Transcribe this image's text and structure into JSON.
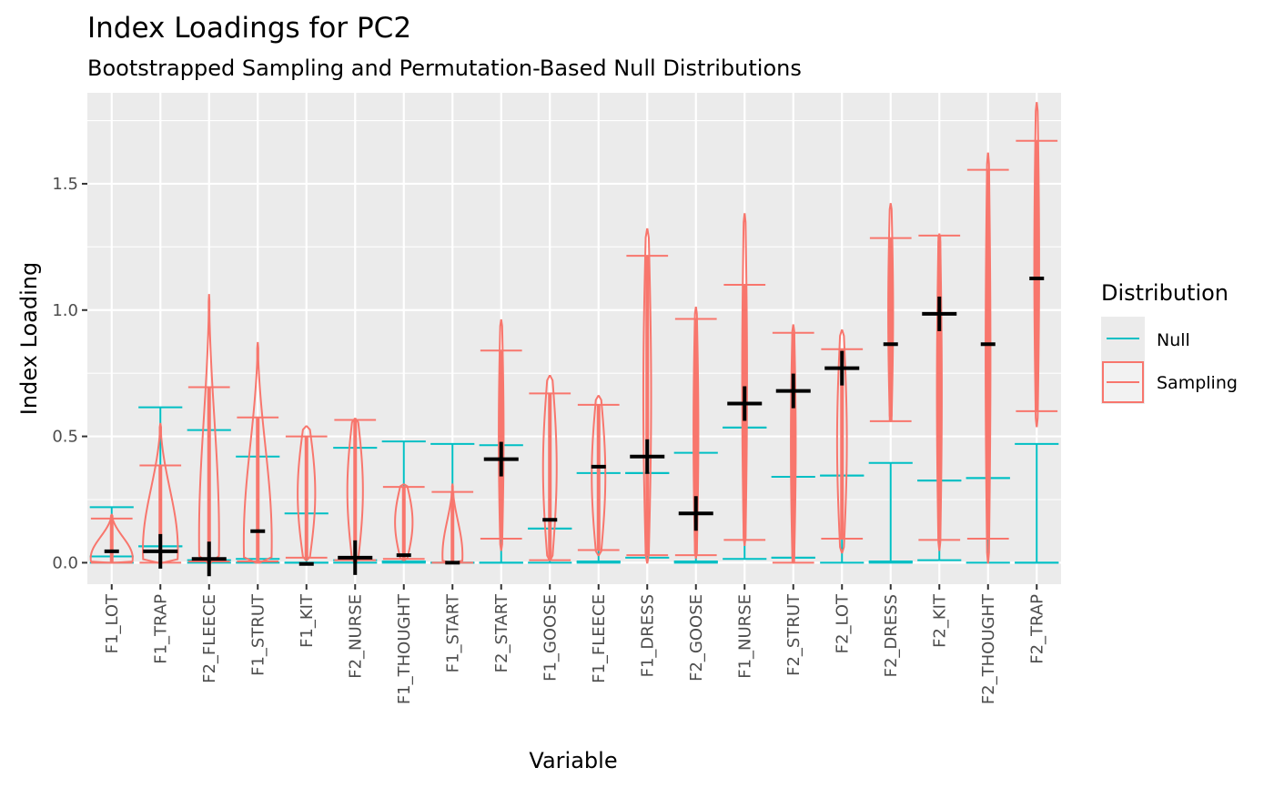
{
  "chart_data": {
    "type": "violin",
    "title": "Index Loadings for PC2",
    "subtitle": "Bootstrapped Sampling and Permutation-Based Null Distributions",
    "xlabel": "Variable",
    "ylabel": "Index Loading",
    "ylim": [
      -0.085,
      1.86
    ],
    "yticks": [
      0.0,
      0.5,
      1.0,
      1.5
    ],
    "ytick_labels": [
      "0.0",
      "0.5",
      "1.0",
      "1.5"
    ],
    "grid": true,
    "legend": {
      "title": "Distribution",
      "placement": "right",
      "entries": [
        {
          "label": "Null",
          "color": "#00BFC4"
        },
        {
          "label": "Sampling",
          "color": "#F8766D"
        }
      ]
    },
    "categories": [
      "F1_LOT",
      "F1_TRAP",
      "F2_FLEECE",
      "F1_STRUT",
      "F1_KIT",
      "F2_NURSE",
      "F1_THOUGHT",
      "F1_START",
      "F2_START",
      "F1_GOOSE",
      "F1_FLEECE",
      "F1_DRESS",
      "F2_GOOSE",
      "F1_NURSE",
      "F2_STRUT",
      "F2_LOT",
      "F2_DRESS",
      "F2_KIT",
      "F2_THOUGHT",
      "F2_TRAP"
    ],
    "null_interval": {
      "low": [
        0.0,
        0.065,
        0.0,
        0.0,
        0.0,
        0.0,
        0.0,
        0.0,
        0.0,
        0.0,
        0.0,
        0.02,
        0.0,
        0.015,
        0.02,
        0.0,
        0.0,
        0.01,
        0.0,
        0.0
      ],
      "mid": [
        0.025,
        0.065,
        0.01,
        0.015,
        0.0,
        0.01,
        0.005,
        0.0,
        0.0,
        0.135,
        0.005,
        0.355,
        0.005,
        0.535,
        0.02,
        0.345,
        0.005,
        0.325,
        0.335,
        0.0
      ],
      "high": [
        0.22,
        0.615,
        0.525,
        0.42,
        0.195,
        0.455,
        0.48,
        0.47,
        0.465,
        0.135,
        0.355,
        0.355,
        0.435,
        0.535,
        0.34,
        0.345,
        0.395,
        0.325,
        0.335,
        0.47
      ]
    },
    "sampling_interval": {
      "low": [
        0.0,
        0.0,
        0.005,
        0.005,
        0.02,
        0.01,
        0.015,
        0.0,
        0.095,
        0.01,
        0.05,
        0.03,
        0.03,
        0.09,
        0.0,
        0.095,
        0.56,
        0.09,
        0.095,
        0.6
      ],
      "high": [
        0.175,
        0.385,
        0.695,
        0.575,
        0.5,
        0.565,
        0.3,
        0.28,
        0.84,
        0.67,
        0.625,
        1.215,
        0.965,
        1.1,
        0.91,
        0.845,
        1.285,
        1.295,
        1.555,
        1.67
      ]
    },
    "sampling_violin": {
      "min": [
        0.0,
        0.0,
        0.0,
        0.0,
        0.01,
        0.0,
        0.01,
        0.0,
        0.05,
        0.01,
        0.03,
        0.0,
        0.02,
        0.07,
        0.0,
        0.04,
        0.56,
        0.05,
        0.0,
        0.54
      ],
      "max": [
        0.19,
        0.55,
        1.06,
        0.87,
        0.54,
        0.57,
        0.31,
        0.31,
        0.96,
        0.74,
        0.66,
        1.32,
        1.01,
        1.38,
        0.94,
        0.92,
        1.42,
        1.3,
        1.62,
        1.82
      ],
      "halfwidth": [
        0.42,
        0.35,
        0.2,
        0.28,
        0.18,
        0.16,
        0.18,
        0.2,
        0.05,
        0.14,
        0.14,
        0.08,
        0.05,
        0.05,
        0.05,
        0.1,
        0.05,
        0.05,
        0.05,
        0.05
      ]
    },
    "observed": [
      0.045,
      0.045,
      0.015,
      0.125,
      -0.005,
      0.02,
      0.03,
      0.0,
      0.41,
      0.17,
      0.38,
      0.42,
      0.195,
      0.63,
      0.68,
      0.77,
      0.865,
      0.985,
      0.865,
      1.125
    ],
    "observed_significant": [
      false,
      true,
      true,
      false,
      false,
      true,
      false,
      false,
      true,
      false,
      false,
      true,
      true,
      true,
      true,
      true,
      false,
      true,
      false,
      false
    ]
  }
}
